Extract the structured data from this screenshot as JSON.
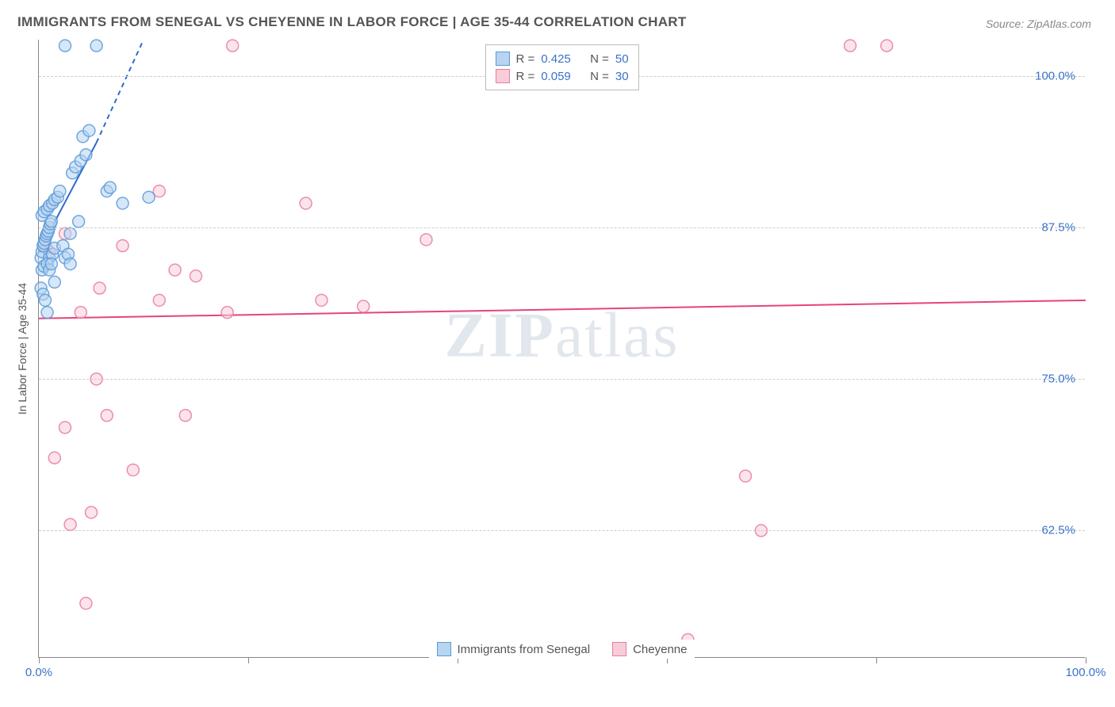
{
  "title": "IMMIGRANTS FROM SENEGAL VS CHEYENNE IN LABOR FORCE | AGE 35-44 CORRELATION CHART",
  "source": "Source: ZipAtlas.com",
  "watermark_bold": "ZIP",
  "watermark_rest": "atlas",
  "y_axis_label": "In Labor Force | Age 35-44",
  "chart": {
    "type": "scatter",
    "xlim": [
      0,
      100
    ],
    "ylim": [
      52,
      103
    ],
    "x_ticks": [
      0,
      20,
      40,
      60,
      80,
      100
    ],
    "y_gridlines": [
      62.5,
      75.0,
      87.5,
      100.0
    ],
    "y_tick_labels": [
      "62.5%",
      "75.0%",
      "87.5%",
      "100.0%"
    ],
    "x_tick_labels": {
      "start": "0.0%",
      "end": "100.0%"
    },
    "grid_color": "#cccccc",
    "axis_color": "#888888",
    "background_color": "#ffffff",
    "marker_radius": 7.5,
    "marker_stroke_width": 1.5,
    "series": [
      {
        "name": "Immigrants from Senegal",
        "fill": "#b7d4f1",
        "stroke": "#5a9ad8",
        "stroke_opacity": 0.85,
        "fill_opacity": 0.55,
        "trend": {
          "x1": 0,
          "y1": 85.5,
          "x2": 5.5,
          "y2": 94.5,
          "dash_x2": 10,
          "dash_y2": 103,
          "color": "#2e6bd0",
          "width": 2
        },
        "r_label": "R =",
        "r_value": "0.425",
        "n_label": "N =",
        "n_value": "50",
        "points": [
          [
            0.2,
            85.0
          ],
          [
            0.3,
            85.5
          ],
          [
            0.4,
            86.0
          ],
          [
            0.5,
            86.2
          ],
          [
            0.6,
            86.5
          ],
          [
            0.7,
            86.8
          ],
          [
            0.8,
            87.0
          ],
          [
            0.9,
            87.2
          ],
          [
            1.0,
            87.5
          ],
          [
            1.1,
            87.8
          ],
          [
            1.2,
            88.0
          ],
          [
            1.0,
            85.0
          ],
          [
            1.3,
            85.3
          ],
          [
            1.5,
            85.8
          ],
          [
            0.3,
            84.0
          ],
          [
            0.5,
            84.3
          ],
          [
            0.8,
            84.5
          ],
          [
            1.0,
            84.0
          ],
          [
            1.2,
            84.5
          ],
          [
            0.2,
            82.5
          ],
          [
            0.4,
            82.0
          ],
          [
            0.6,
            81.5
          ],
          [
            0.8,
            80.5
          ],
          [
            0.3,
            88.5
          ],
          [
            0.5,
            88.8
          ],
          [
            0.8,
            89.0
          ],
          [
            1.0,
            89.3
          ],
          [
            1.3,
            89.5
          ],
          [
            1.5,
            89.8
          ],
          [
            1.8,
            90.0
          ],
          [
            2.0,
            90.5
          ],
          [
            2.3,
            86.0
          ],
          [
            2.5,
            85.0
          ],
          [
            2.8,
            85.3
          ],
          [
            3.0,
            84.5
          ],
          [
            3.2,
            92.0
          ],
          [
            3.5,
            92.5
          ],
          [
            4.0,
            93.0
          ],
          [
            4.5,
            93.5
          ],
          [
            3.0,
            87.0
          ],
          [
            3.8,
            88.0
          ],
          [
            2.5,
            102.5
          ],
          [
            4.2,
            95.0
          ],
          [
            4.8,
            95.5
          ],
          [
            5.5,
            102.5
          ],
          [
            6.5,
            90.5
          ],
          [
            6.8,
            90.8
          ],
          [
            8.0,
            89.5
          ],
          [
            10.5,
            90.0
          ],
          [
            1.5,
            83.0
          ]
        ]
      },
      {
        "name": "Cheyenne",
        "fill": "#f8cdd8",
        "stroke": "#e87ba0",
        "stroke_opacity": 0.85,
        "fill_opacity": 0.55,
        "trend": {
          "x1": 0,
          "y1": 80.0,
          "x2": 100,
          "y2": 81.5,
          "color": "#e6447a",
          "width": 2
        },
        "r_label": "R =",
        "r_value": "0.059",
        "n_label": "N =",
        "n_value": "30",
        "points": [
          [
            0.7,
            85.8
          ],
          [
            1.0,
            85.5
          ],
          [
            2.5,
            87.0
          ],
          [
            4.0,
            80.5
          ],
          [
            5.5,
            75.0
          ],
          [
            6.5,
            72.0
          ],
          [
            8.0,
            86.0
          ],
          [
            5.0,
            64.0
          ],
          [
            3.0,
            63.0
          ],
          [
            1.5,
            68.5
          ],
          [
            2.5,
            71.0
          ],
          [
            9.0,
            67.5
          ],
          [
            11.5,
            90.5
          ],
          [
            11.5,
            81.5
          ],
          [
            13.0,
            84.0
          ],
          [
            14.0,
            72.0
          ],
          [
            15.0,
            83.5
          ],
          [
            18.5,
            102.5
          ],
          [
            18.0,
            80.5
          ],
          [
            25.5,
            89.5
          ],
          [
            27.0,
            81.5
          ],
          [
            31.0,
            81.0
          ],
          [
            37.0,
            86.5
          ],
          [
            4.5,
            56.5
          ],
          [
            62.0,
            53.5
          ],
          [
            67.5,
            67.0
          ],
          [
            69.0,
            62.5
          ],
          [
            77.5,
            102.5
          ],
          [
            81.0,
            102.5
          ],
          [
            5.8,
            82.5
          ]
        ]
      }
    ]
  },
  "legend_label_color": "#555555",
  "legend_value_color_blue": "#3a72c9",
  "legend_value_color_pink": "#e6447a",
  "tick_label_color": "#3a72c9",
  "bottom_legend_bg": "#ffffff"
}
